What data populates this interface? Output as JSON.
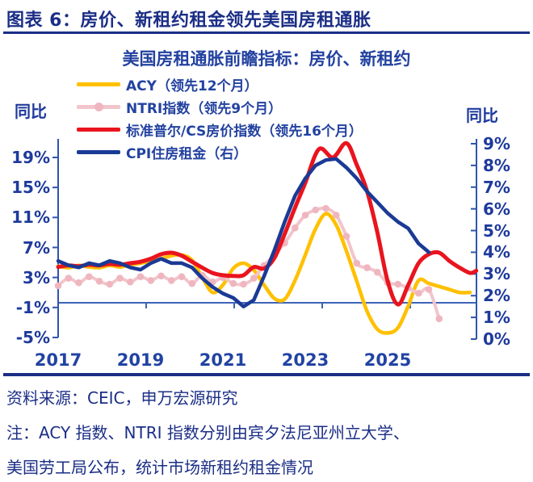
{
  "header": {
    "title": "图表 6：房价、新租约租金领先美国房租通胀"
  },
  "footer": {
    "source": "资料来源：CEIC，申万宏源研究",
    "note_line1": "注：ACY 指数、NTRI 指数分别由宾夕法尼亚州立大学、",
    "note_line2": "美国劳工局公布，统计市场新租约租金情况"
  },
  "colors": {
    "header_navy": "#1b2e86",
    "chart_text_blue": "#2342a0",
    "axis_line_blue": "#2e55ad",
    "baseline_blue": "#3c64b8"
  },
  "chart_data": {
    "type": "line",
    "title": "美国房租通胀前瞻指标：房价、新租约",
    "left_axis": {
      "title": "同比",
      "ticks": [
        "19%",
        "15%",
        "11%",
        "7%",
        "3%",
        "-1%",
        "-5%"
      ],
      "tick_values": [
        19,
        15,
        11,
        7,
        3,
        -1,
        -5
      ],
      "min": -5,
      "max": 19,
      "baseline": 0
    },
    "right_axis": {
      "title": "同比",
      "ticks": [
        "9%",
        "8%",
        "7%",
        "6%",
        "5%",
        "4%",
        "3%",
        "2%",
        "1%",
        "0%"
      ],
      "tick_values": [
        9,
        8,
        7,
        6,
        5,
        4,
        3,
        2,
        1,
        0
      ],
      "min": 0,
      "max": 9
    },
    "x_axis": {
      "labels": [
        "2017",
        "2019",
        "2021",
        "2023",
        "2025"
      ],
      "label_years": [
        2017,
        2019,
        2021,
        2023,
        2025
      ],
      "range": [
        2017,
        2027.15
      ]
    },
    "series": [
      {
        "name": "ACY（领先12个月）",
        "color": "#FFC000",
        "axis": "left",
        "marker": false,
        "smooth": true,
        "width": 4.5,
        "points": [
          [
            2017.0,
            4.5
          ],
          [
            2017.25,
            4.3
          ],
          [
            2017.5,
            4.6
          ],
          [
            2017.75,
            4.4
          ],
          [
            2018.0,
            4.3
          ],
          [
            2018.25,
            4.6
          ],
          [
            2018.5,
            4.4
          ],
          [
            2018.75,
            4.7
          ],
          [
            2019.0,
            4.9
          ],
          [
            2019.25,
            5.2
          ],
          [
            2019.5,
            5.5
          ],
          [
            2019.75,
            5.9
          ],
          [
            2020.0,
            6.0
          ],
          [
            2020.25,
            5.3
          ],
          [
            2020.5,
            3.0
          ],
          [
            2020.75,
            1.0
          ],
          [
            2021.0,
            2.0
          ],
          [
            2021.25,
            4.2
          ],
          [
            2021.5,
            4.9
          ],
          [
            2021.75,
            4.0
          ],
          [
            2022.0,
            2.0
          ],
          [
            2022.25,
            0.2
          ],
          [
            2022.5,
            0.1
          ],
          [
            2022.75,
            2.6
          ],
          [
            2023.0,
            6.0
          ],
          [
            2023.25,
            9.5
          ],
          [
            2023.5,
            11.5
          ],
          [
            2023.75,
            10.0
          ],
          [
            2024.0,
            6.5
          ],
          [
            2024.25,
            2.5
          ],
          [
            2024.5,
            -1.5
          ],
          [
            2024.75,
            -3.9
          ],
          [
            2025.0,
            -4.4
          ],
          [
            2025.25,
            -3.7
          ],
          [
            2025.5,
            -0.8
          ],
          [
            2025.75,
            2.6
          ],
          [
            2026.0,
            2.2
          ],
          [
            2026.25,
            1.8
          ],
          [
            2026.5,
            1.4
          ],
          [
            2026.75,
            1.0
          ],
          [
            2027.0,
            1.0
          ]
        ]
      },
      {
        "name": "NTRI指数（领先9个月）",
        "color": "#F2C5CB",
        "marker_color": "#EFB6C0",
        "axis": "left",
        "marker": true,
        "smooth": true,
        "width": 4,
        "points": [
          [
            2017.0,
            1.9
          ],
          [
            2017.25,
            2.9
          ],
          [
            2017.5,
            2.3
          ],
          [
            2017.75,
            3.1
          ],
          [
            2018.0,
            2.5
          ],
          [
            2018.25,
            2.1
          ],
          [
            2018.5,
            2.9
          ],
          [
            2018.75,
            2.4
          ],
          [
            2019.0,
            3.1
          ],
          [
            2019.25,
            2.6
          ],
          [
            2019.5,
            3.2
          ],
          [
            2019.75,
            2.6
          ],
          [
            2020.0,
            3.1
          ],
          [
            2020.25,
            2.2
          ],
          [
            2020.5,
            3.3
          ],
          [
            2020.75,
            2.4
          ],
          [
            2021.0,
            3.0
          ],
          [
            2021.25,
            2.2
          ],
          [
            2021.5,
            2.1
          ],
          [
            2021.75,
            2.9
          ],
          [
            2022.0,
            4.6
          ],
          [
            2022.25,
            6.0
          ],
          [
            2022.5,
            7.6
          ],
          [
            2022.75,
            9.6
          ],
          [
            2023.0,
            11.3
          ],
          [
            2023.25,
            12.0
          ],
          [
            2023.5,
            12.2
          ],
          [
            2023.75,
            11.3
          ],
          [
            2024.0,
            8.5
          ],
          [
            2024.25,
            4.9
          ],
          [
            2024.5,
            4.3
          ],
          [
            2024.75,
            3.7
          ],
          [
            2025.0,
            2.3
          ],
          [
            2025.25,
            2.1
          ],
          [
            2025.5,
            1.6
          ],
          [
            2025.75,
            0.9
          ],
          [
            2026.0,
            1.4
          ],
          [
            2026.25,
            -2.5
          ]
        ]
      },
      {
        "name": "标准普尔/CS房价指数（领先16个月）",
        "color": "#E9141E",
        "axis": "left",
        "marker": false,
        "smooth": true,
        "width": 5,
        "points": [
          [
            2017.0,
            4.4
          ],
          [
            2017.25,
            4.6
          ],
          [
            2017.5,
            4.5
          ],
          [
            2017.75,
            4.7
          ],
          [
            2018.0,
            4.6
          ],
          [
            2018.25,
            4.8
          ],
          [
            2018.5,
            4.7
          ],
          [
            2018.75,
            4.9
          ],
          [
            2019.0,
            5.1
          ],
          [
            2019.25,
            5.5
          ],
          [
            2019.5,
            6.1
          ],
          [
            2019.75,
            6.3
          ],
          [
            2020.0,
            5.9
          ],
          [
            2020.25,
            5.1
          ],
          [
            2020.5,
            4.3
          ],
          [
            2020.75,
            3.6
          ],
          [
            2021.0,
            3.3
          ],
          [
            2021.25,
            3.2
          ],
          [
            2021.5,
            3.3
          ],
          [
            2021.75,
            4.4
          ],
          [
            2022.0,
            4.2
          ],
          [
            2022.25,
            5.6
          ],
          [
            2022.5,
            8.8
          ],
          [
            2022.75,
            12.3
          ],
          [
            2023.0,
            15.6
          ],
          [
            2023.33,
            20.1
          ],
          [
            2023.67,
            19.0
          ],
          [
            2024.0,
            20.9
          ],
          [
            2024.25,
            18.0
          ],
          [
            2024.5,
            14.5
          ],
          [
            2024.75,
            9.0
          ],
          [
            2025.0,
            2.5
          ],
          [
            2025.25,
            -0.6
          ],
          [
            2025.5,
            2.0
          ],
          [
            2025.75,
            4.9
          ],
          [
            2026.0,
            6.1
          ],
          [
            2026.25,
            6.3
          ],
          [
            2026.5,
            5.2
          ],
          [
            2026.75,
            4.3
          ],
          [
            2027.0,
            3.6
          ],
          [
            2027.15,
            3.9
          ]
        ]
      },
      {
        "name": "CPI住房租金（右）",
        "color": "#1A3A94",
        "axis": "right",
        "marker": false,
        "smooth": false,
        "width": 4.5,
        "points": [
          [
            2017.0,
            3.6
          ],
          [
            2017.25,
            3.4
          ],
          [
            2017.5,
            3.3
          ],
          [
            2017.75,
            3.5
          ],
          [
            2018.0,
            3.4
          ],
          [
            2018.25,
            3.6
          ],
          [
            2018.5,
            3.5
          ],
          [
            2018.75,
            3.3
          ],
          [
            2019.0,
            3.2
          ],
          [
            2019.25,
            3.5
          ],
          [
            2019.5,
            3.7
          ],
          [
            2019.75,
            3.5
          ],
          [
            2020.0,
            3.5
          ],
          [
            2020.25,
            3.3
          ],
          [
            2020.5,
            2.8
          ],
          [
            2020.75,
            2.4
          ],
          [
            2021.0,
            2.1
          ],
          [
            2021.25,
            1.9
          ],
          [
            2021.5,
            1.5
          ],
          [
            2021.75,
            1.8
          ],
          [
            2022.0,
            2.9
          ],
          [
            2022.25,
            4.1
          ],
          [
            2022.5,
            5.4
          ],
          [
            2022.75,
            6.6
          ],
          [
            2023.0,
            7.4
          ],
          [
            2023.25,
            8.0
          ],
          [
            2023.5,
            8.25
          ],
          [
            2023.75,
            8.3
          ],
          [
            2024.0,
            7.9
          ],
          [
            2024.25,
            7.4
          ],
          [
            2024.5,
            6.8
          ],
          [
            2024.75,
            6.3
          ],
          [
            2025.0,
            5.8
          ],
          [
            2025.25,
            5.4
          ],
          [
            2025.5,
            5.1
          ],
          [
            2025.75,
            4.4
          ],
          [
            2026.0,
            4.0
          ]
        ]
      }
    ]
  }
}
